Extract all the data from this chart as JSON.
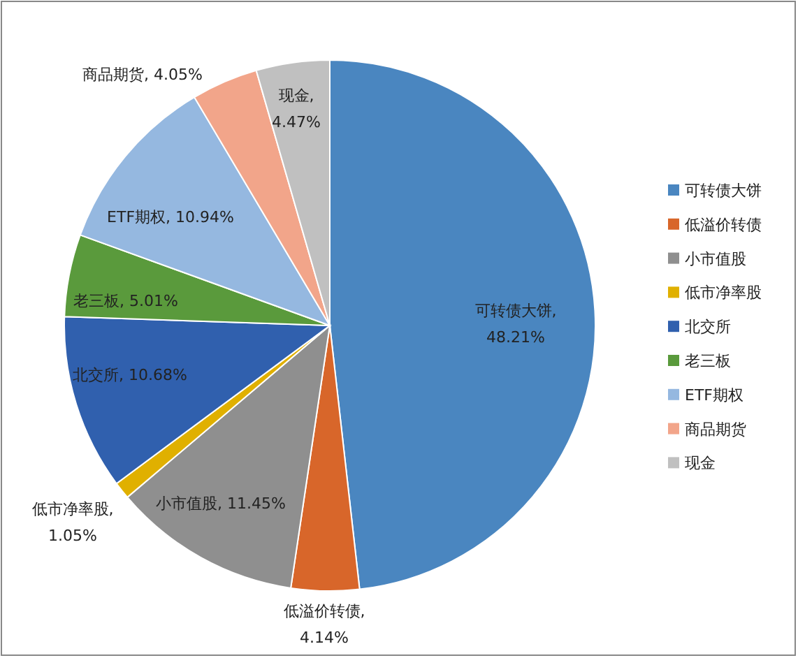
{
  "chart_data": {
    "type": "pie",
    "categories": [
      "可转债大饼",
      "低溢价转债",
      "小市值股",
      "低市净率股",
      "北交所",
      "老三板",
      "ETF期权",
      "商品期货",
      "现金"
    ],
    "values": [
      48.21,
      4.14,
      11.45,
      1.05,
      10.68,
      5.01,
      10.94,
      4.05,
      4.47
    ],
    "value_labels": [
      "可转债大饼,\n48.21%",
      "低溢价转债,\n4.14%",
      "小市值股, 11.45%",
      "低市净率股,\n1.05%",
      "北交所, 10.68%",
      "老三板, 5.01%",
      "ETF期权, 10.94%",
      "商品期货, 4.05%",
      "现金,\n4.47%"
    ],
    "colors": [
      "#4a86c0",
      "#d8662a",
      "#8f8f8f",
      "#e0b000",
      "#3060ae",
      "#5a9a3c",
      "#95b8e0",
      "#f2a58a",
      "#c0c0c0"
    ],
    "legend": "right"
  }
}
